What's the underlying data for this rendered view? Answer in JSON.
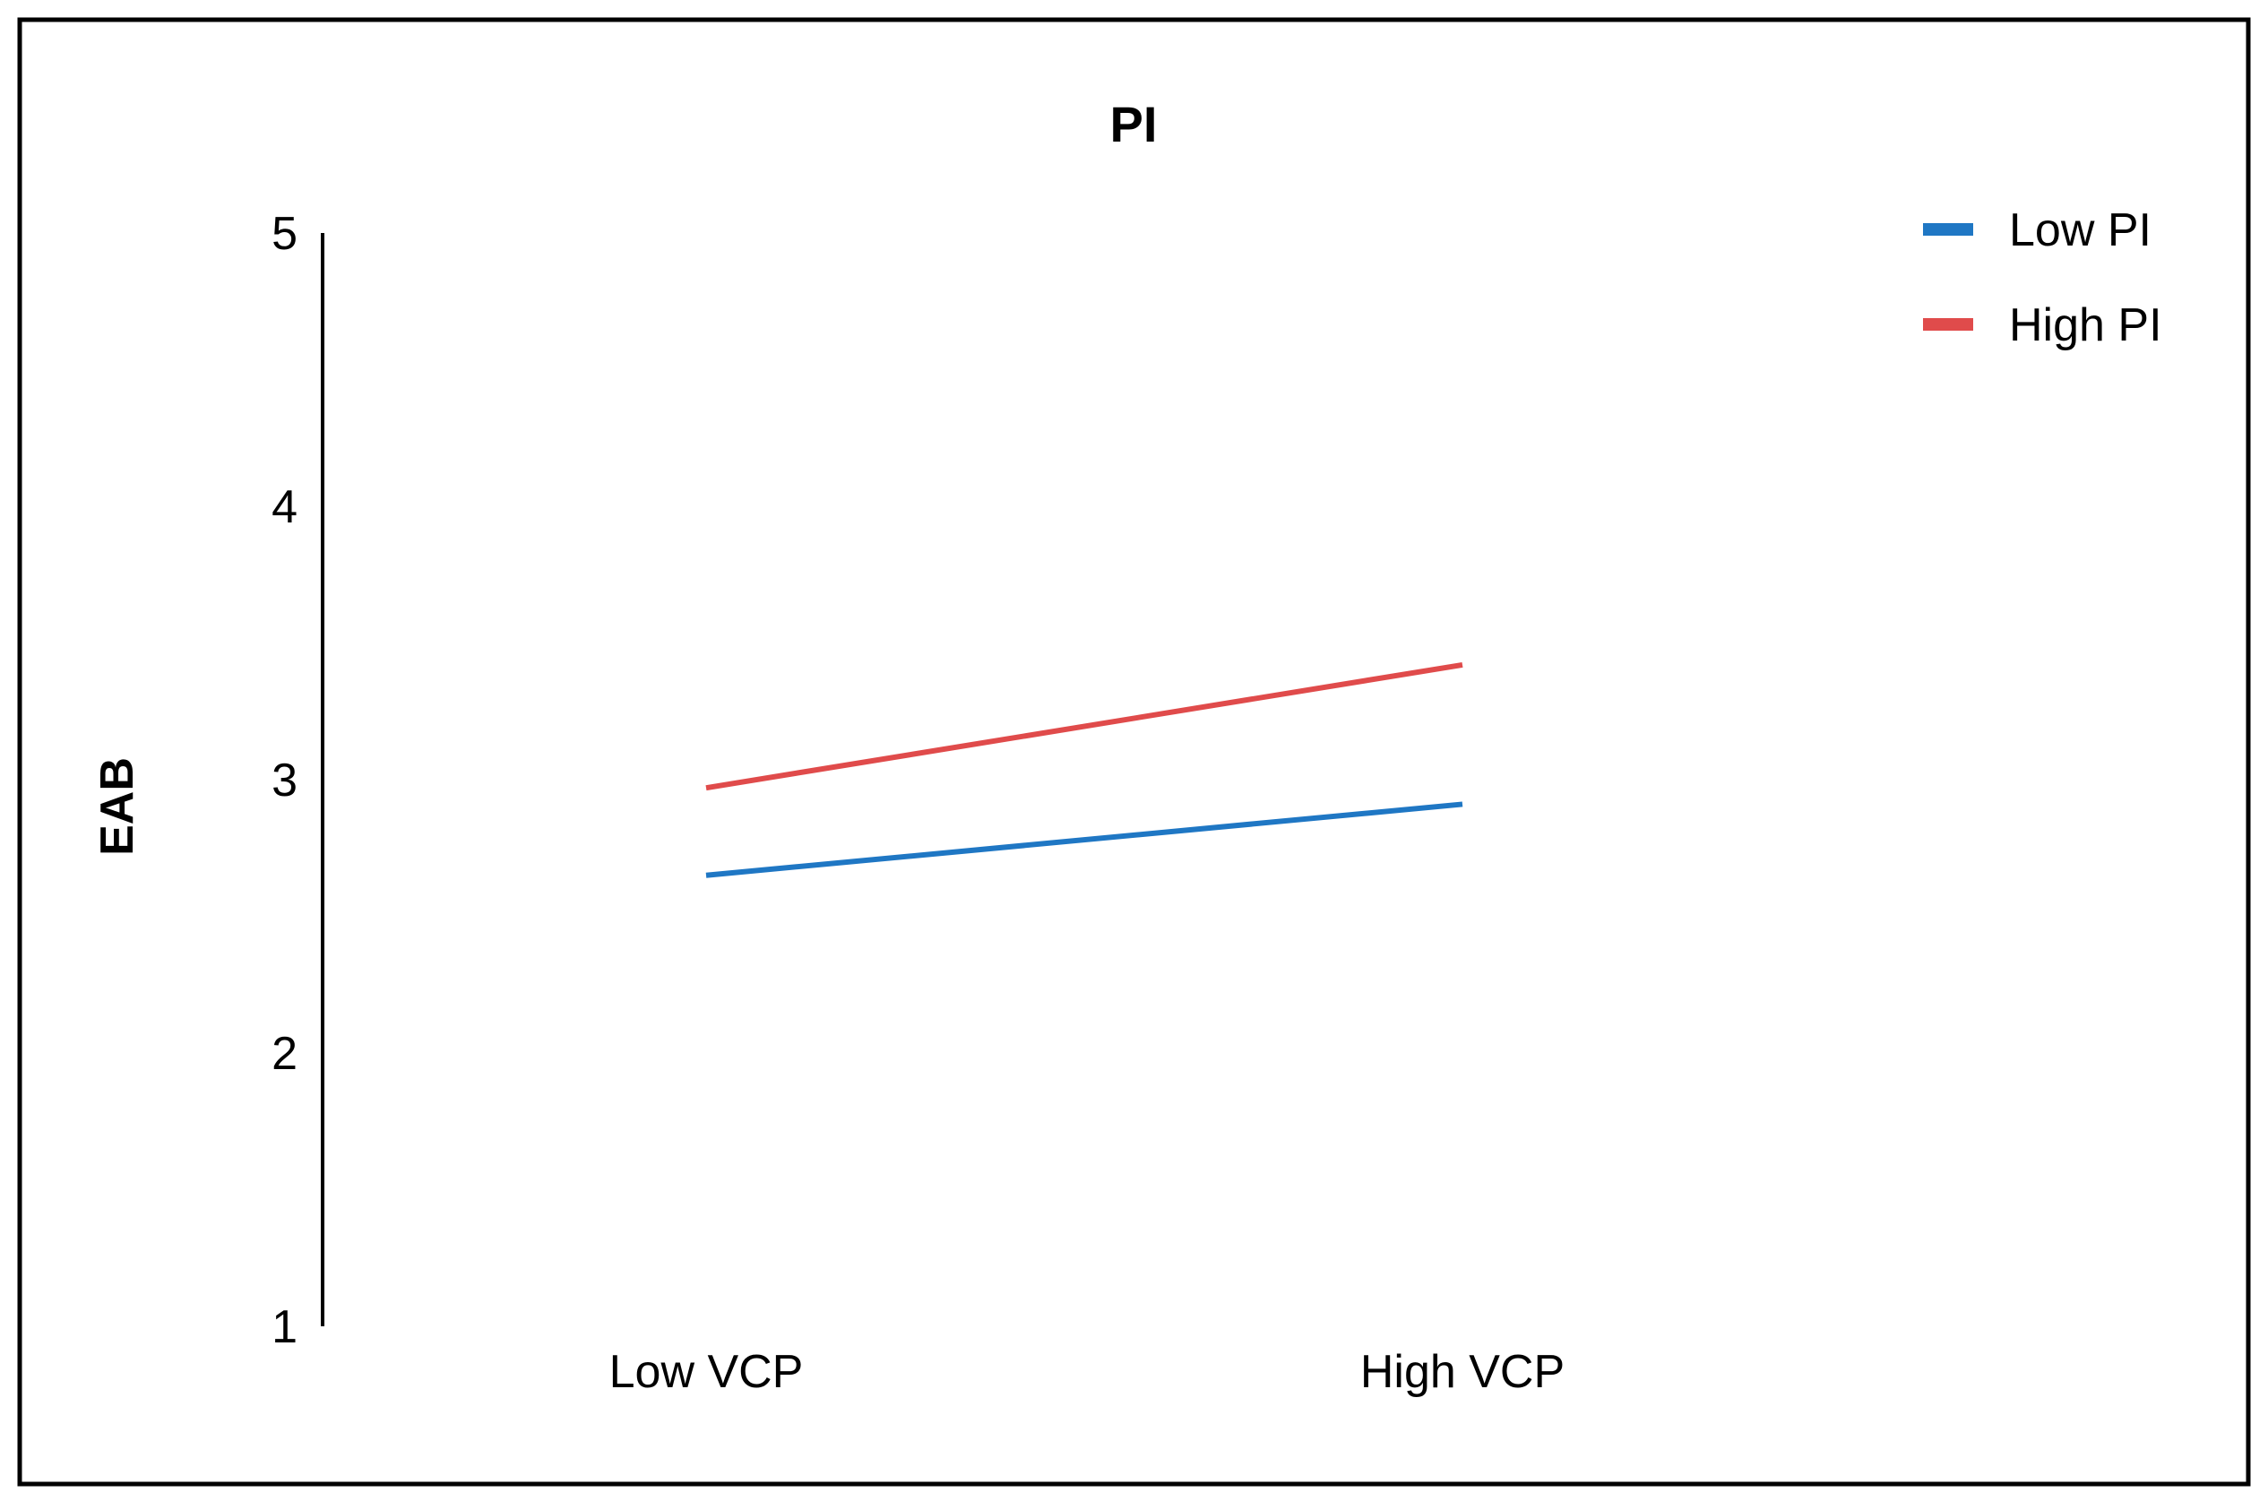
{
  "chart_data": {
    "type": "line",
    "title": "PI",
    "xlabel": "",
    "ylabel": "EAB",
    "categories": [
      "Low VCP",
      "High VCP"
    ],
    "ylim": [
      1,
      5
    ],
    "yticks": [
      1,
      2,
      3,
      4,
      5
    ],
    "grid": false,
    "legend_position": "top-right",
    "series": [
      {
        "name": "Low PI",
        "color": "#1f77c4",
        "values": [
          2.65,
          2.91
        ]
      },
      {
        "name": "High PI",
        "color": "#e04b4b",
        "values": [
          2.97,
          3.42
        ]
      }
    ]
  }
}
